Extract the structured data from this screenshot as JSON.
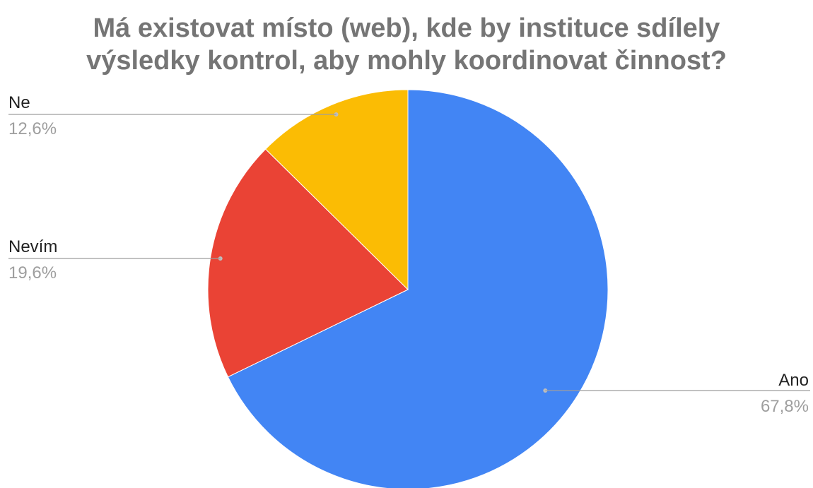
{
  "chart_data": {
    "type": "pie",
    "title_lines": [
      "Má existovat místo (web), kde by instituce sdílely",
      "výsledky kontrol, aby mohly koordinovat činnost?"
    ],
    "slices": [
      {
        "label": "Ano",
        "value_label": "67,8%",
        "value": 67.8,
        "color": "#4285f4"
      },
      {
        "label": "Nevím",
        "value_label": "19,6%",
        "value": 19.6,
        "color": "#ea4335"
      },
      {
        "label": "Ne",
        "value_label": "12,6%",
        "value": 12.6,
        "color": "#fbbc04"
      }
    ],
    "legend": "labels-with-leader-lines"
  }
}
